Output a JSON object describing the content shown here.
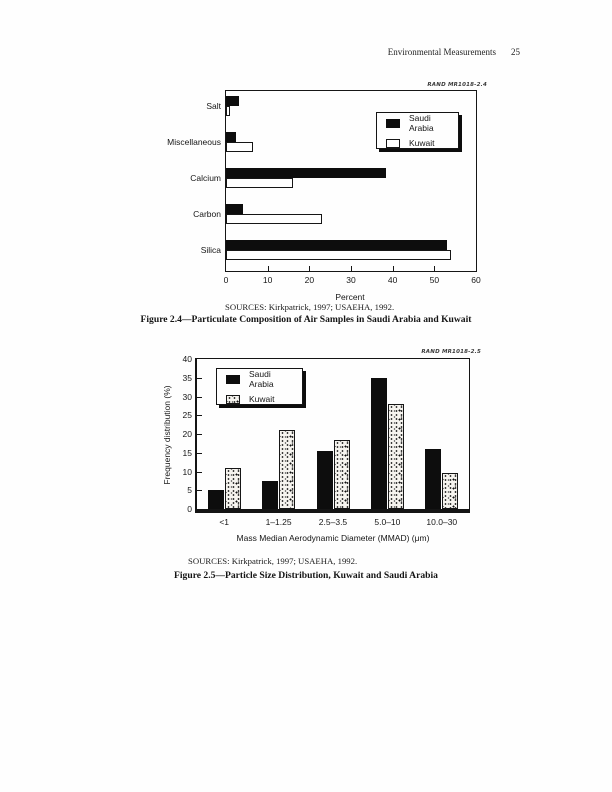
{
  "page": {
    "header": "Environmental Measurements",
    "page_number": "25"
  },
  "chart_data": [
    {
      "type": "bar",
      "orientation": "horizontal",
      "rand_label": "RAND MR1018-2.4",
      "title": "Particulate Composition of Air Samples in Saudi Arabia and Kuwait",
      "categories": [
        "Salt",
        "Miscellaneous",
        "Calcium",
        "Carbon",
        "Silica"
      ],
      "series": [
        {
          "name": "Saudi Arabia",
          "style": "solid-black",
          "values": [
            3,
            2.5,
            38.5,
            4,
            53
          ]
        },
        {
          "name": "Kuwait",
          "style": "open-white",
          "values": [
            1,
            6.5,
            16,
            23,
            54
          ]
        }
      ],
      "xlabel": "Percent",
      "xlim": [
        0,
        60
      ],
      "xticks": [
        0,
        10,
        20,
        30,
        40,
        50,
        60
      ],
      "grid": false,
      "legend_position": "top-right",
      "sources": "SOURCES:  Kirkpatrick, 1997; USAEHA, 1992.",
      "caption": "Figure 2.4—Particulate Composition of Air Samples in Saudi Arabia and Kuwait"
    },
    {
      "type": "bar",
      "orientation": "vertical",
      "rand_label": "RAND MR1018-2.5",
      "title": "Particle Size Distribution, Kuwait and Saudi Arabia",
      "categories": [
        "<1",
        "1–1.25",
        "2.5–3.5",
        "5.0–10",
        "10.0–30"
      ],
      "series": [
        {
          "name": "Saudi Arabia",
          "style": "solid-black",
          "values": [
            5,
            7.5,
            15.5,
            35,
            16
          ]
        },
        {
          "name": "Kuwait",
          "style": "stipple",
          "values": [
            11,
            21,
            18.5,
            28,
            9.5
          ]
        }
      ],
      "xlabel": "Mass Median Aerodynamic Diameter (MMAD) (μm)",
      "ylabel": "Frequency distribution (%)",
      "ylim": [
        0,
        40
      ],
      "yticks": [
        0,
        5,
        10,
        15,
        20,
        25,
        30,
        35,
        40
      ],
      "grid": false,
      "legend_position": "top-left",
      "sources": "SOURCES:  Kirkpatrick, 1997; USAEHA, 1992.",
      "caption": "Figure 2.5—Particle Size Distribution, Kuwait and Saudi Arabia"
    }
  ]
}
